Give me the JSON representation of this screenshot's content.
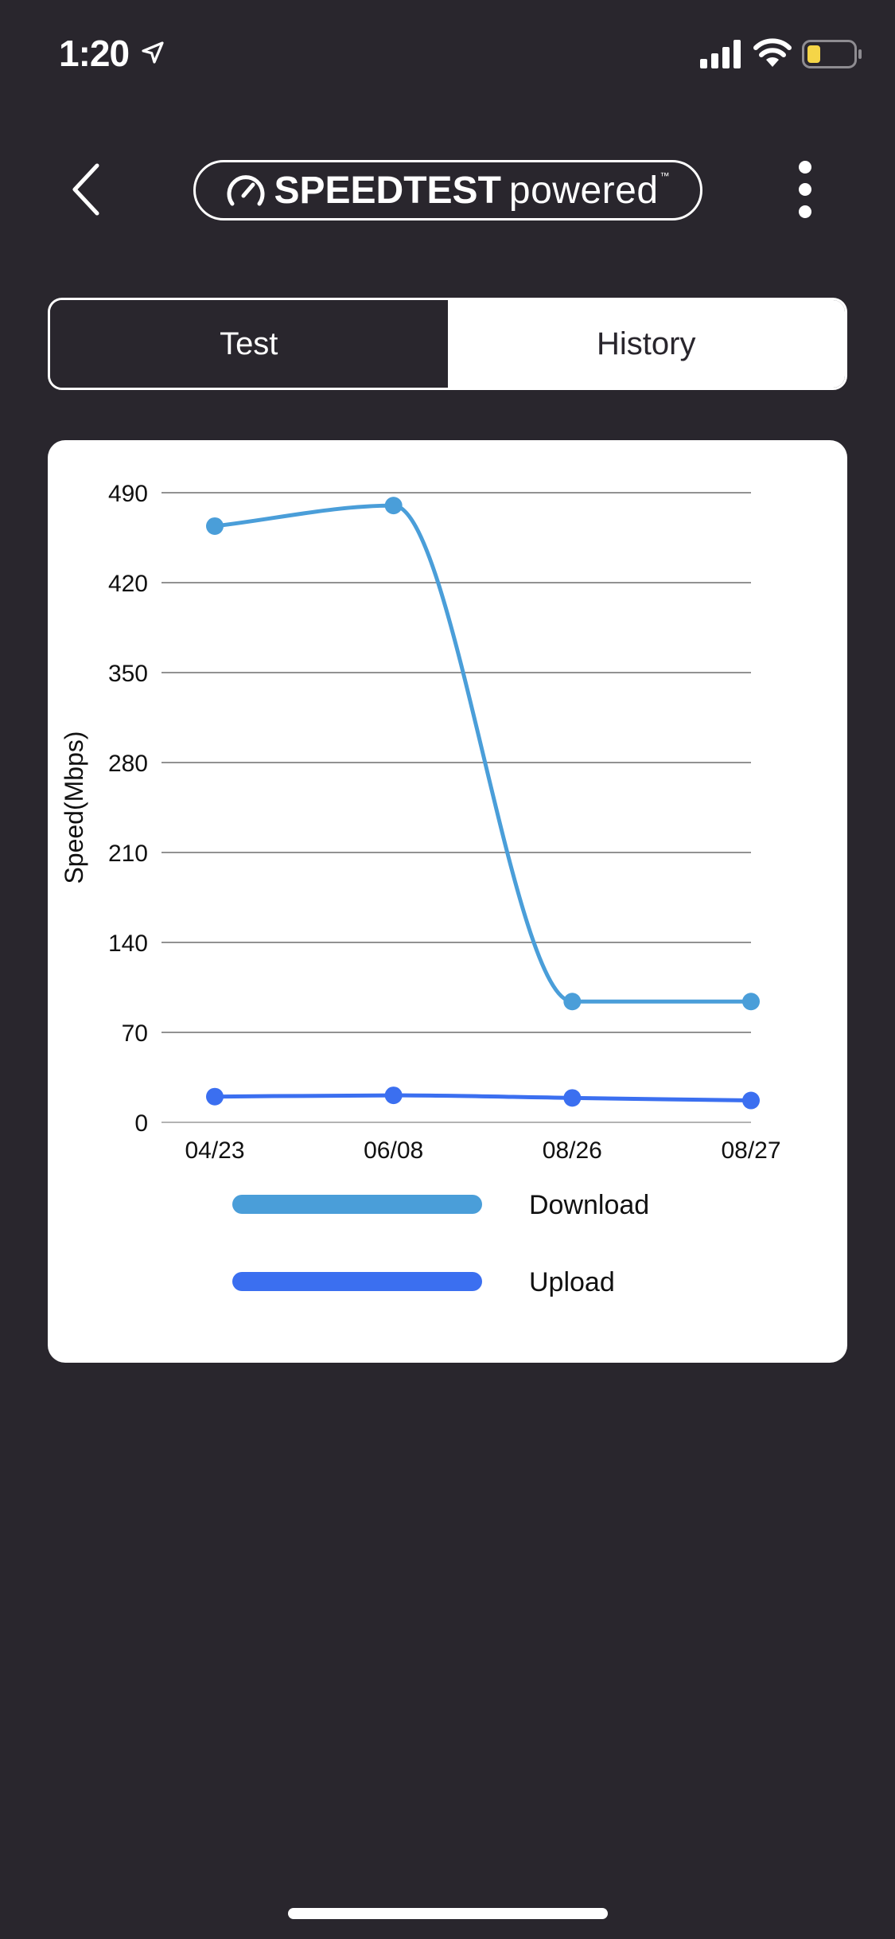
{
  "status_bar": {
    "time": "1:20",
    "icons": [
      "location-arrow-icon",
      "cellular-signal-icon",
      "wifi-icon",
      "battery-low-icon"
    ],
    "battery_color": "#f5d547"
  },
  "header": {
    "brand": "SPEEDTEST",
    "brand_suffix": "powered",
    "trademark": "™",
    "icons": [
      "chevron-left-icon",
      "gauge-icon",
      "more-vertical-icon"
    ]
  },
  "tabs": [
    {
      "label": "Test",
      "selected": false
    },
    {
      "label": "History",
      "selected": true
    }
  ],
  "colors": {
    "background": "#29262d",
    "card": "#ffffff",
    "download": "#4a9ed9",
    "upload": "#3b6ff0"
  },
  "chart_data": {
    "type": "line",
    "title": "",
    "xlabel": "",
    "ylabel": "Speed(Mbps)",
    "categories": [
      "04/23",
      "06/08",
      "08/26",
      "08/27"
    ],
    "y_ticks": [
      0,
      70,
      140,
      210,
      280,
      350,
      420,
      490
    ],
    "ylim": [
      0,
      490
    ],
    "grid": "horizontal",
    "legend_placement": "bottom",
    "series": [
      {
        "name": "Download",
        "values": [
          464,
          480,
          94,
          94
        ],
        "color": "#4a9ed9"
      },
      {
        "name": "Upload",
        "values": [
          20,
          21,
          19,
          17
        ],
        "color": "#3b6ff0"
      }
    ]
  }
}
